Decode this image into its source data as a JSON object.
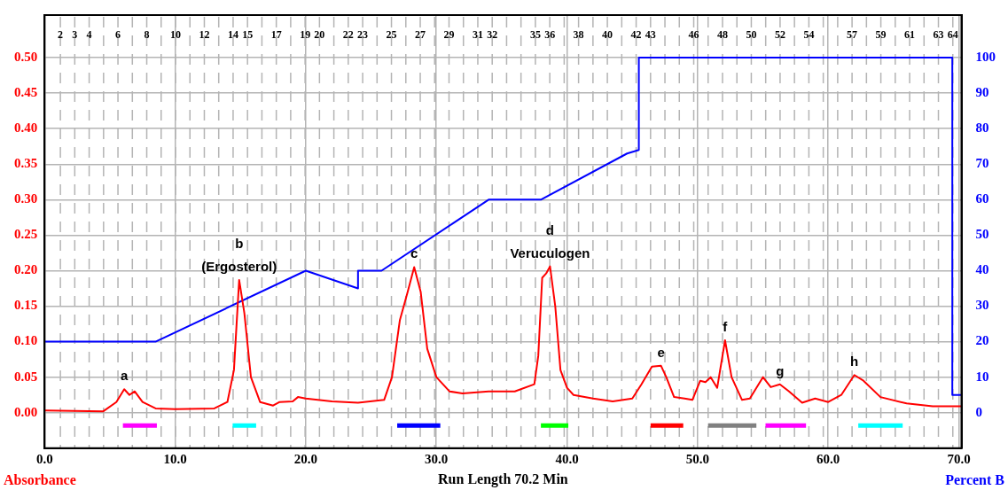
{
  "chart_data": {
    "type": "line",
    "xlabel": "Run Length 70.2 Min",
    "ylabel": "Absorbance",
    "y2label": "Percent B",
    "series": [
      {
        "color": "#ff0000",
        "x": [
          0,
          4.5,
          5.5,
          6.1,
          6.5,
          6.9,
          7.5,
          8.5,
          10,
          13,
          14,
          14.5,
          14.9,
          15.3,
          15.8,
          16.5,
          17.5,
          18,
          19,
          19.4,
          20,
          22,
          24,
          26,
          26.6,
          27.2,
          27.8,
          28.3,
          28.8,
          29.3,
          30,
          31,
          32,
          34,
          36,
          37.5,
          37.8,
          38.1,
          38.4,
          38.7,
          39.1,
          39.5,
          40,
          40.5,
          42,
          43.5,
          45,
          45.7,
          46.5,
          47.2,
          47.6,
          48.2,
          49,
          49.6,
          50.2,
          50.6,
          51,
          51.5,
          52.1,
          52.6,
          53.4,
          54,
          55,
          55.6,
          56.3,
          57,
          58,
          59,
          60,
          61,
          62,
          62.7,
          64,
          66,
          68,
          70.2
        ],
        "values": [
          0.003,
          0.002,
          0.015,
          0.033,
          0.025,
          0.03,
          0.015,
          0.006,
          0.005,
          0.006,
          0.015,
          0.06,
          0.187,
          0.14,
          0.05,
          0.015,
          0.01,
          0.015,
          0.016,
          0.022,
          0.02,
          0.016,
          0.014,
          0.018,
          0.05,
          0.13,
          0.17,
          0.205,
          0.17,
          0.09,
          0.05,
          0.03,
          0.027,
          0.03,
          0.03,
          0.04,
          0.08,
          0.19,
          0.196,
          0.206,
          0.15,
          0.06,
          0.035,
          0.025,
          0.02,
          0.016,
          0.02,
          0.04,
          0.065,
          0.066,
          0.05,
          0.022,
          0.02,
          0.018,
          0.045,
          0.043,
          0.05,
          0.035,
          0.102,
          0.05,
          0.018,
          0.02,
          0.05,
          0.036,
          0.04,
          0.03,
          0.014,
          0.02,
          0.015,
          0.025,
          0.053,
          0.045,
          0.022,
          0.013,
          0.009,
          0.009
        ]
      },
      {
        "color": "#0000ff",
        "axis": "y2",
        "x": [
          0,
          8.5,
          20,
          24,
          24,
          25.8,
          34,
          38,
          44.6,
          45.5,
          45.5,
          69.5,
          69.5,
          70.2
        ],
        "values": [
          20,
          20,
          40,
          35,
          40,
          40,
          60,
          60,
          73,
          74,
          100,
          100,
          5,
          5
        ]
      },
      {
        "color": "#ff00ff",
        "x": [
          6.0,
          8.6
        ],
        "values": [
          -0.018,
          -0.018
        ]
      },
      {
        "color": "#00ffff",
        "x": [
          14.4,
          16.2
        ],
        "values": [
          -0.018,
          -0.018
        ]
      },
      {
        "color": "#0000ff",
        "x": [
          27.0,
          30.3
        ],
        "values": [
          -0.018,
          -0.018
        ]
      },
      {
        "color": "#00ff00",
        "x": [
          38.0,
          40.1
        ],
        "values": [
          -0.018,
          -0.018
        ]
      },
      {
        "color": "#ff0000",
        "x": [
          46.4,
          48.9
        ],
        "values": [
          -0.018,
          -0.018
        ]
      },
      {
        "color": "#808080",
        "x": [
          50.8,
          54.5
        ],
        "values": [
          -0.018,
          -0.018
        ]
      },
      {
        "color": "#ff00ff",
        "x": [
          55.2,
          58.3
        ],
        "values": [
          -0.018,
          -0.018
        ]
      },
      {
        "color": "#00ffff",
        "x": [
          62.3,
          65.7
        ],
        "values": [
          -0.018,
          -0.018
        ]
      }
    ],
    "xlim": [
      0,
      70.2
    ],
    "xticks": [
      {
        "value": 0,
        "label": "0.0"
      },
      {
        "value": 10,
        "label": "10.0"
      },
      {
        "value": 20,
        "label": "20.0"
      },
      {
        "value": 30,
        "label": "30.0"
      },
      {
        "value": 40,
        "label": "40.0"
      },
      {
        "value": 50,
        "label": "50.0"
      },
      {
        "value": 60,
        "label": "60.0"
      },
      {
        "value": 70,
        "label": "70.0"
      }
    ],
    "ylim": [
      -0.05,
      0.56
    ],
    "yticks": [
      {
        "value": 0,
        "label": "0.00"
      },
      {
        "value": 0.05,
        "label": "0.05"
      },
      {
        "value": 0.1,
        "label": "0.10"
      },
      {
        "value": 0.15,
        "label": "0.15"
      },
      {
        "value": 0.2,
        "label": "0.20"
      },
      {
        "value": 0.25,
        "label": "0.25"
      },
      {
        "value": 0.3,
        "label": "0.30"
      },
      {
        "value": 0.35,
        "label": "0.35"
      },
      {
        "value": 0.4,
        "label": "0.40"
      },
      {
        "value": 0.45,
        "label": "0.45"
      },
      {
        "value": 0.5,
        "label": "0.50"
      }
    ],
    "y2lim": [
      -10,
      112
    ],
    "y2ticks": [
      0,
      10,
      20,
      30,
      40,
      50,
      60,
      70,
      80,
      90,
      100
    ],
    "x2lim": [
      0.9,
      64.6
    ],
    "x2ticks": [
      2,
      3,
      4,
      {
        "value": 5,
        "label": null
      },
      6,
      {
        "value": 7,
        "label": null
      },
      8,
      {
        "value": 9,
        "label": null
      },
      10,
      {
        "value": 11,
        "label": null
      },
      12,
      {
        "value": 13,
        "label": null
      },
      14,
      15,
      {
        "value": 16,
        "label": null
      },
      17,
      {
        "value": 18,
        "label": null
      },
      19,
      20,
      {
        "value": 21,
        "label": null
      },
      22,
      23,
      {
        "value": 24,
        "label": null
      },
      25,
      {
        "value": 26,
        "label": null
      },
      27,
      {
        "value": 28,
        "label": null
      },
      29,
      {
        "value": 30,
        "label": null
      },
      31,
      32,
      {
        "value": 33,
        "label": null
      },
      {
        "value": 34,
        "label": null
      },
      35,
      36,
      {
        "value": 37,
        "label": null
      },
      38,
      {
        "value": 39,
        "label": null
      },
      40,
      {
        "value": 41,
        "label": null
      },
      42,
      43,
      {
        "value": 44,
        "label": null
      },
      {
        "value": 45,
        "label": null
      },
      46,
      {
        "value": 47,
        "label": null
      },
      48,
      {
        "value": 49,
        "label": null
      },
      50,
      {
        "value": 51,
        "label": null
      },
      52,
      {
        "value": 53,
        "label": null
      },
      54,
      {
        "value": 55,
        "label": null
      },
      {
        "value": 56,
        "label": null
      },
      57,
      {
        "value": 58,
        "label": null
      },
      59,
      {
        "value": 60,
        "label": null
      },
      61,
      {
        "value": 62,
        "label": null
      },
      63,
      64
    ],
    "annotations": [
      {
        "text": "a",
        "x": 6.1,
        "y": 0.033
      },
      {
        "text": "b\n(Ergosterol)",
        "x": 14.9,
        "y": 0.187
      },
      {
        "text": "c",
        "x": 28.3,
        "y": 0.205
      },
      {
        "text": "d\nVeruculogen",
        "x": 38.7,
        "y": 0.206
      },
      {
        "text": "e",
        "x": 47.2,
        "y": 0.066
      },
      {
        "text": "f",
        "x": 52.1,
        "y": 0.102
      },
      {
        "text": "g",
        "x": 56.3,
        "y": 0.04
      },
      {
        "text": "h",
        "x": 62,
        "y": 0.053
      }
    ],
    "grid": true,
    "legend": false,
    "marker": "none",
    "line_style": "solid"
  }
}
